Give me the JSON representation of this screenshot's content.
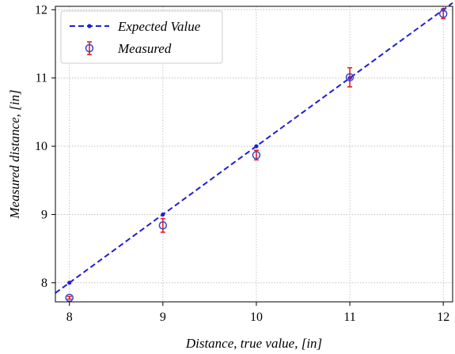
{
  "chart_data": {
    "type": "scatter",
    "xlabel": "Distance, true value, [in]",
    "ylabel": "Measured distance, [in]",
    "xlim": [
      7.85,
      12.1
    ],
    "ylim": [
      7.72,
      12.05
    ],
    "xticks": [
      "8",
      "9",
      "10",
      "11",
      "12"
    ],
    "yticks": [
      "8",
      "9",
      "10",
      "11",
      "12"
    ],
    "grid": true,
    "legend_position": "top-left",
    "series": [
      {
        "name": "Expected Value",
        "kind": "line",
        "style": "dashed",
        "color": "#1f1fd6",
        "x": [
          8,
          9,
          10,
          11,
          12
        ],
        "y": [
          8,
          9,
          10,
          11,
          12
        ]
      },
      {
        "name": "Measured",
        "kind": "errorbar",
        "marker_color": "#4040c8",
        "error_color": "#e02020",
        "x": [
          8,
          9,
          10,
          11,
          12
        ],
        "y": [
          7.78,
          8.84,
          9.87,
          11.01,
          11.94
        ],
        "yerr": [
          0.02,
          0.1,
          0.07,
          0.14,
          0.07
        ]
      }
    ]
  }
}
